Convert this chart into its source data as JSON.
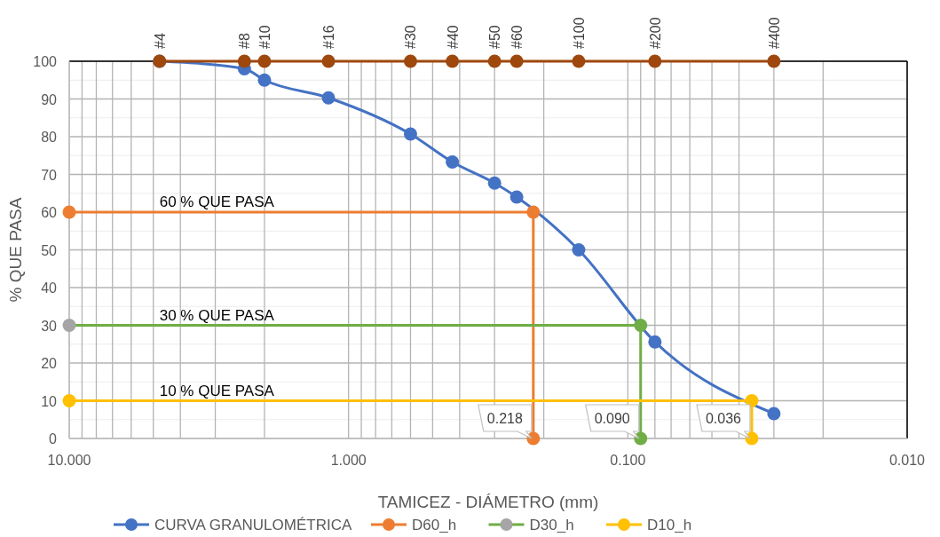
{
  "chart_data": {
    "type": "line",
    "xlabel": "TAMICEZ - DIÁMETRO (mm)",
    "ylabel": "% QUE PASA",
    "log": "x",
    "xlim": [
      10,
      0.01
    ],
    "xticks": [
      {
        "value": 10,
        "label": "10.000"
      },
      {
        "value": 1,
        "label": "1.000"
      },
      {
        "value": 0.1,
        "label": "0.100"
      },
      {
        "value": 0.01,
        "label": "0.010"
      }
    ],
    "ylim": [
      0,
      100
    ],
    "yticks": [
      0,
      10,
      20,
      30,
      40,
      50,
      60,
      70,
      80,
      90,
      100
    ],
    "grid": true,
    "legend": "bottom",
    "marker": "circle",
    "line_style": "solid",
    "series": [
      {
        "name": "CURVA GRANULOMÉTRICA",
        "color": "#4472c4",
        "x": [
          4.75,
          2.36,
          2.0,
          1.18,
          0.6,
          0.425,
          0.3,
          0.25,
          0.15,
          0.08,
          0.03
        ],
        "values": [
          100,
          98,
          95,
          90.3,
          80.7,
          73.3,
          67.7,
          64,
          50,
          25.6,
          6.6
        ]
      },
      {
        "name": "D60_h",
        "color": "#ed7d31",
        "x": [
          10,
          0.218,
          0.218
        ],
        "values": [
          60,
          60,
          0
        ]
      },
      {
        "name": "D30_h",
        "color": "#70ad47",
        "colors": [
          "#a5a5a5",
          "#70ad47",
          "#70ad47"
        ],
        "x": [
          10,
          0.09,
          0.09
        ],
        "values": [
          30,
          30,
          0
        ]
      },
      {
        "name": "D10_h",
        "color": "#ffc000",
        "x": [
          10,
          0.036,
          0.036
        ],
        "values": [
          10,
          10,
          0
        ]
      },
      {
        "color": "#9e480e",
        "x": [
          4.75,
          2.36,
          2.0,
          1.18,
          0.6,
          0.425,
          0.3,
          0.25,
          0.15,
          0.08,
          0.03
        ],
        "values": [
          100,
          100,
          100,
          100,
          100,
          100,
          100,
          100,
          100,
          100,
          100
        ]
      }
    ],
    "annotations": [
      {
        "text": "#4",
        "x": 4.75,
        "y": 100
      },
      {
        "text": "#8",
        "x": 2.36,
        "y": 100
      },
      {
        "text": "#10",
        "x": 2.0,
        "y": 100
      },
      {
        "text": "#16",
        "x": 1.18,
        "y": 100
      },
      {
        "text": "#30",
        "x": 0.6,
        "y": 100
      },
      {
        "text": "#40",
        "x": 0.425,
        "y": 100
      },
      {
        "text": "#50",
        "x": 0.3,
        "y": 100
      },
      {
        "text": "#60",
        "x": 0.25,
        "y": 100
      },
      {
        "text": "#100",
        "x": 0.15,
        "y": 100
      },
      {
        "text": "#200",
        "x": 0.08,
        "y": 100
      },
      {
        "text": "#400",
        "x": 0.03,
        "y": 100
      },
      {
        "text": "60 % QUE PASA",
        "x": 4.75,
        "y": 60
      },
      {
        "text": "30 % QUE PASA",
        "x": 4.75,
        "y": 30
      },
      {
        "text": "10 % QUE PASA",
        "x": 4.75,
        "y": 10
      },
      {
        "text": "0.218",
        "x": 0.218,
        "y": 0
      },
      {
        "text": "0.090",
        "x": 0.09,
        "y": 0
      },
      {
        "text": "0.036",
        "x": 0.036,
        "y": 0
      }
    ]
  }
}
